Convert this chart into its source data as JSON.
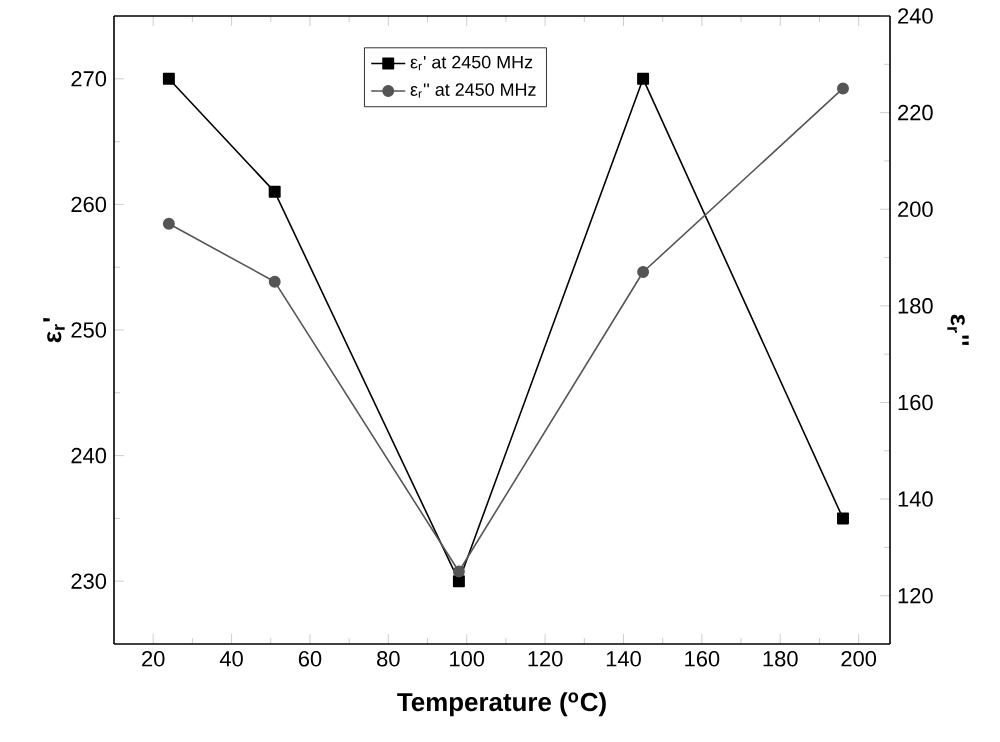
{
  "chart_data": {
    "type": "line",
    "xlabel": "Temperature ($^{o}$C)",
    "ylabel": "ε$_{r}$'",
    "y2label": "ε$_{r}$''",
    "x": [
      24,
      51,
      98,
      145,
      196
    ],
    "xlim": [
      10,
      208
    ],
    "xticks": [
      20,
      40,
      60,
      80,
      100,
      120,
      140,
      160,
      180,
      200
    ],
    "ylim": [
      225,
      275
    ],
    "yticks": [
      230,
      240,
      250,
      260,
      270
    ],
    "y2lim": [
      110,
      240
    ],
    "y2ticks": [
      120,
      140,
      160,
      180,
      200,
      220,
      240
    ],
    "legend": "top",
    "series": [
      {
        "name": "ε$_{r}$' at 2450 MHz",
        "color": "#000000",
        "marker": "square",
        "values": [
          270,
          261,
          230,
          270,
          235
        ]
      },
      {
        "name": "ε$_{r}$'' at 2450 MHz",
        "color": "#555555",
        "marker": "circle",
        "axis": "y2",
        "values": [
          197,
          185,
          125,
          187,
          225
        ]
      }
    ]
  }
}
